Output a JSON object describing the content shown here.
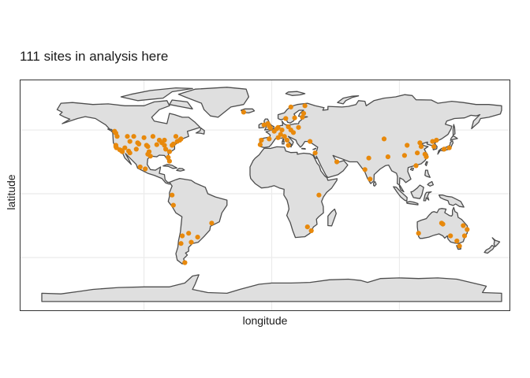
{
  "title": "111 sites in analysis here",
  "x_axis_label": "longitude",
  "y_axis_label": "latitude",
  "colors": {
    "site": "#E8890C",
    "land": "#DFDFDF",
    "border": "#4D4D4D",
    "grid": "#EBEBEB"
  },
  "chart_data": {
    "type": "scatter",
    "title": "111 sites in analysis here",
    "xlabel": "longitude",
    "ylabel": "latitude",
    "xlim": [
      -180,
      180
    ],
    "ylim": [
      -90,
      84
    ],
    "grid": true,
    "legend": "none",
    "series": [
      {
        "points": [
          [
            -123,
            49
          ],
          [
            -122,
            47.5
          ],
          [
            -121,
            45
          ],
          [
            -122,
            38
          ],
          [
            -122,
            37
          ],
          [
            -121.5,
            36
          ],
          [
            -119,
            34.5
          ],
          [
            -118,
            34
          ],
          [
            -117,
            33
          ],
          [
            -115,
            36
          ],
          [
            -112,
            33.5
          ],
          [
            -111,
            32
          ],
          [
            -106,
            35
          ],
          [
            -105,
            40
          ],
          [
            -104,
            39
          ],
          [
            -111,
            41
          ],
          [
            -113,
            45
          ],
          [
            -108,
            45
          ],
          [
            -100,
            44
          ],
          [
            -98,
            38
          ],
          [
            -97,
            31
          ],
          [
            -96,
            33
          ],
          [
            -95,
            29.5
          ],
          [
            -97,
            37
          ],
          [
            -93,
            45
          ],
          [
            -90,
            38.5
          ],
          [
            -88,
            42
          ],
          [
            -86,
            40
          ],
          [
            -84,
            42
          ],
          [
            -84,
            38
          ],
          [
            -83,
            35
          ],
          [
            -81,
            28.5
          ],
          [
            -80,
            25.5
          ],
          [
            -80,
            33
          ],
          [
            -78,
            38
          ],
          [
            -77,
            39
          ],
          [
            -74,
            41
          ],
          [
            -72,
            42
          ],
          [
            -71,
            43
          ],
          [
            -75,
            45
          ],
          [
            -99,
            19.5
          ],
          [
            -103,
            21
          ],
          [
            -78,
            -1
          ],
          [
            -77,
            -9
          ],
          [
            -47,
            -23
          ],
          [
            -70,
            -33
          ],
          [
            -71,
            -39
          ],
          [
            -65,
            -31
          ],
          [
            -63,
            -38
          ],
          [
            -58,
            -34
          ],
          [
            -68,
            -54
          ],
          [
            -22,
            64
          ],
          [
            -9,
            38.5
          ],
          [
            -8,
            42
          ],
          [
            -6,
            54
          ],
          [
            -3,
            55
          ],
          [
            -2,
            53
          ],
          [
            -1,
            51.5
          ],
          [
            2,
            49
          ],
          [
            4,
            51
          ],
          [
            5,
            52
          ],
          [
            8,
            50
          ],
          [
            7,
            46.5
          ],
          [
            10,
            45
          ],
          [
            12,
            42
          ],
          [
            15,
            50
          ],
          [
            13,
            52.5
          ],
          [
            17,
            48
          ],
          [
            21,
            52
          ],
          [
            24,
            60
          ],
          [
            11,
            59
          ],
          [
            18,
            59.5
          ],
          [
            25,
            63
          ],
          [
            15,
            68
          ],
          [
            26,
            69
          ],
          [
            5,
            44
          ],
          [
            -2,
            43
          ],
          [
            13,
            38
          ],
          [
            30,
            41
          ],
          [
            34,
            32
          ],
          [
            37,
            -1
          ],
          [
            31,
            -29
          ],
          [
            28,
            -26
          ],
          [
            51,
            25
          ],
          [
            73,
            19
          ],
          [
            76,
            28
          ],
          [
            77,
            11.5
          ],
          [
            91,
            29
          ],
          [
            88,
            43
          ],
          [
            104,
            30
          ],
          [
            106,
            38
          ],
          [
            113,
            22
          ],
          [
            114,
            32
          ],
          [
            116,
            40
          ],
          [
            117,
            37
          ],
          [
            120,
            31
          ],
          [
            126,
            41
          ],
          [
            129,
            42
          ],
          [
            121,
            29
          ],
          [
            127,
            37
          ],
          [
            139,
            36
          ],
          [
            135,
            35
          ],
          [
            115,
            -31
          ],
          [
            133,
            -23
          ],
          [
            140,
            -33
          ],
          [
            145,
            -37
          ],
          [
            151,
            -33
          ],
          [
            150,
            -25
          ],
          [
            153,
            -28
          ],
          [
            147,
            -41
          ],
          [
            134,
            -23.8
          ]
        ]
      }
    ]
  }
}
